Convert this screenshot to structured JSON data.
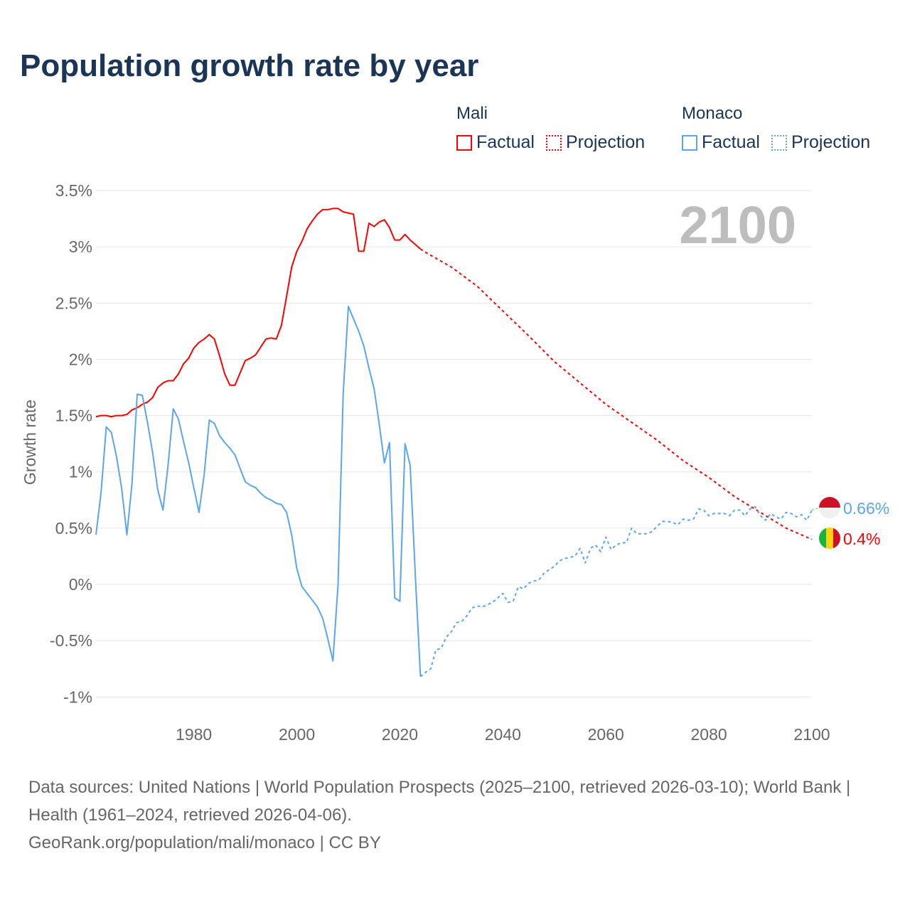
{
  "title": "Population growth rate by year",
  "legend": {
    "groups": [
      {
        "name": "Mali",
        "color": "#ff0000",
        "factual": "Factual",
        "projection": "Projection"
      },
      {
        "name": "Monaco",
        "color": "#5aa6ee",
        "factual": "Factual",
        "projection": "Projection"
      }
    ]
  },
  "footer": {
    "sources": "Data sources: United Nations | World Population Prospects (2025–2100, retrieved 2026-03-10); World Bank | Health (1961–2024, retrieved 2026-04-06).",
    "credit": "GeoRank.org/population/mali/monaco | CC BY"
  },
  "chart_data": {
    "type": "line",
    "title": "Population growth rate by year",
    "ylabel": "Growth rate",
    "xlabel": "",
    "year_label": "2100",
    "xlim": [
      1961,
      2100
    ],
    "ylim": [
      -1.1,
      3.6
    ],
    "yticks": [
      -1,
      -0.5,
      0,
      0.5,
      1,
      1.5,
      2,
      2.5,
      3,
      3.5
    ],
    "ytick_labels": [
      "-1%",
      "-0.5%",
      "0%",
      "0.5%",
      "1%",
      "1.5%",
      "2%",
      "2.5%",
      "3%",
      "3.5%"
    ],
    "xticks": [
      1980,
      2000,
      2020,
      2040,
      2060,
      2080,
      2100
    ],
    "grid": true,
    "series": [
      {
        "name": "Mali",
        "kind": "factual",
        "color": "#ff0000",
        "x_start": 1961,
        "values": [
          1.49,
          1.5,
          1.5,
          1.49,
          1.5,
          1.5,
          1.51,
          1.55,
          1.57,
          1.6,
          1.62,
          1.66,
          1.75,
          1.79,
          1.81,
          1.81,
          1.87,
          1.96,
          2.01,
          2.1,
          2.15,
          2.18,
          2.22,
          2.18,
          2.03,
          1.87,
          1.77,
          1.77,
          1.88,
          1.99,
          2.01,
          2.04,
          2.11,
          2.18,
          2.19,
          2.18,
          2.3,
          2.56,
          2.82,
          2.96,
          3.05,
          3.16,
          3.23,
          3.29,
          3.33,
          3.33,
          3.34,
          3.34,
          3.31,
          3.3,
          3.29,
          2.96,
          2.96,
          3.21,
          3.18,
          3.22,
          3.24,
          3.17,
          3.06,
          3.06,
          3.11,
          3.06,
          3.02,
          2.98
        ]
      },
      {
        "name": "Mali",
        "kind": "projection",
        "color": "#ff0000",
        "x": [
          2024,
          2025,
          2030,
          2035,
          2040,
          2045,
          2050,
          2055,
          2060,
          2065,
          2070,
          2075,
          2080,
          2085,
          2090,
          2095,
          2100
        ],
        "values": [
          2.98,
          2.95,
          2.82,
          2.65,
          2.43,
          2.21,
          1.98,
          1.79,
          1.6,
          1.44,
          1.28,
          1.1,
          0.95,
          0.78,
          0.64,
          0.5,
          0.4
        ]
      },
      {
        "name": "Monaco",
        "kind": "factual",
        "color": "#5aa6ee",
        "x_start": 1961,
        "values": [
          0.44,
          0.82,
          1.4,
          1.35,
          1.13,
          0.85,
          0.44,
          0.9,
          1.69,
          1.68,
          1.44,
          1.17,
          0.84,
          0.66,
          1.06,
          1.56,
          1.47,
          1.27,
          1.08,
          0.86,
          0.64,
          0.97,
          1.46,
          1.43,
          1.32,
          1.26,
          1.21,
          1.15,
          1.03,
          0.91,
          0.88,
          0.86,
          0.81,
          0.77,
          0.75,
          0.72,
          0.71,
          0.64,
          0.44,
          0.14,
          -0.02,
          -0.08,
          -0.14,
          -0.2,
          -0.3,
          -0.48,
          -0.68,
          0.0,
          1.69,
          2.47,
          2.36,
          2.25,
          2.12,
          1.92,
          1.74,
          1.42,
          1.08,
          1.26,
          -0.12,
          -0.15,
          1.25,
          1.06,
          0.08,
          -0.82
        ]
      },
      {
        "name": "Monaco",
        "kind": "projection",
        "color": "#5aa6ee",
        "x_start": 2024,
        "values": [
          -0.82,
          -0.78,
          -0.75,
          -0.58,
          -0.57,
          -0.47,
          -0.42,
          -0.34,
          -0.33,
          -0.28,
          -0.21,
          -0.19,
          -0.2,
          -0.18,
          -0.16,
          -0.12,
          -0.08,
          -0.16,
          -0.15,
          -0.02,
          -0.04,
          0.01,
          0.03,
          0.04,
          0.1,
          0.13,
          0.16,
          0.21,
          0.23,
          0.24,
          0.25,
          0.32,
          0.19,
          0.32,
          0.35,
          0.29,
          0.42,
          0.31,
          0.35,
          0.37,
          0.37,
          0.5,
          0.45,
          0.45,
          0.45,
          0.47,
          0.52,
          0.56,
          0.56,
          0.55,
          0.53,
          0.58,
          0.57,
          0.58,
          0.67,
          0.66,
          0.61,
          0.63,
          0.63,
          0.63,
          0.61,
          0.66,
          0.66,
          0.61,
          0.67,
          0.69,
          0.61,
          0.57,
          0.63,
          0.6,
          0.58,
          0.64,
          0.63,
          0.6,
          0.62,
          0.57,
          0.66
        ]
      }
    ],
    "end_labels": [
      {
        "country": "Monaco",
        "text": "0.66%",
        "value": 0.66,
        "color": "#5aa6ee"
      },
      {
        "country": "Mali",
        "text": "0.4%",
        "value": 0.4,
        "color": "#ff0000"
      }
    ]
  }
}
